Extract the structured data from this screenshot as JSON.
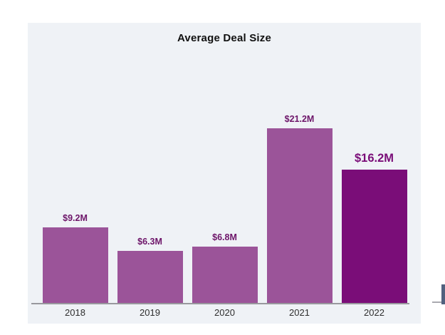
{
  "page": {
    "background": "#ffffff"
  },
  "chart_card": {
    "background": "#eff2f6"
  },
  "chart_data": {
    "type": "bar",
    "title": "Average Deal Size",
    "categories": [
      "2018",
      "2019",
      "2020",
      "2021",
      "2022"
    ],
    "values": [
      9.2,
      6.3,
      6.8,
      21.2,
      16.2
    ],
    "value_labels": [
      "$9.2M",
      "$6.3M",
      "$6.8M",
      "$21.2M",
      "$16.2M"
    ],
    "unit": "$M",
    "xlabel": "",
    "ylabel": "",
    "ylim": [
      0,
      24
    ],
    "grid": false,
    "legend": "none",
    "bar_color": "#9b5499",
    "highlight_index": 4,
    "highlight_color": "#7a0d78",
    "value_label_color": "#6d1569",
    "highlight_label_color": "#7a0d78",
    "axis_line_color": "#98989d",
    "category_label_color": "#2e2e2e",
    "title_color": "#111111"
  },
  "partial_next_chart": {
    "bar_color": "#51617e",
    "axis_line_color": "#aaaab0"
  }
}
